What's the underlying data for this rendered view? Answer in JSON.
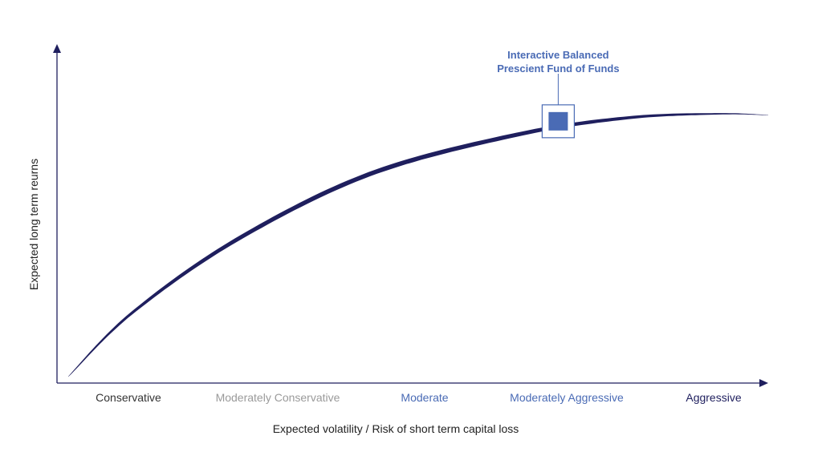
{
  "chart_data": {
    "type": "line",
    "title": "",
    "xlabel": "Expected volatility / Risk of short term capital loss",
    "ylabel": "Expected long term reurns",
    "categories": [
      "Conservative",
      "Moderately Conservative",
      "Moderate",
      "Moderately Aggressive",
      "Aggressive"
    ],
    "category_colors": [
      "#333333",
      "#9a9a9a",
      "#4a6bb5",
      "#4a6bb5",
      "#1f1f5e"
    ],
    "series": [
      {
        "values": [
          0.0,
          0.24,
          0.52,
          0.77,
          0.92,
          0.985,
          1.0,
          0.995
        ],
        "x": [
          0.0,
          0.09,
          0.24,
          0.43,
          0.64,
          0.8,
          0.93,
          1.0
        ]
      }
    ],
    "annotation": {
      "lines": [
        "Interactive Balanced",
        "Prescient Fund of Funds"
      ],
      "x": 0.7,
      "y": 0.97
    },
    "grid": false,
    "colors": {
      "curve": "#1f1f5e",
      "axis": "#1f1f5e",
      "marker": "#4a6bb5",
      "annotation": "#4a6bb5"
    }
  }
}
